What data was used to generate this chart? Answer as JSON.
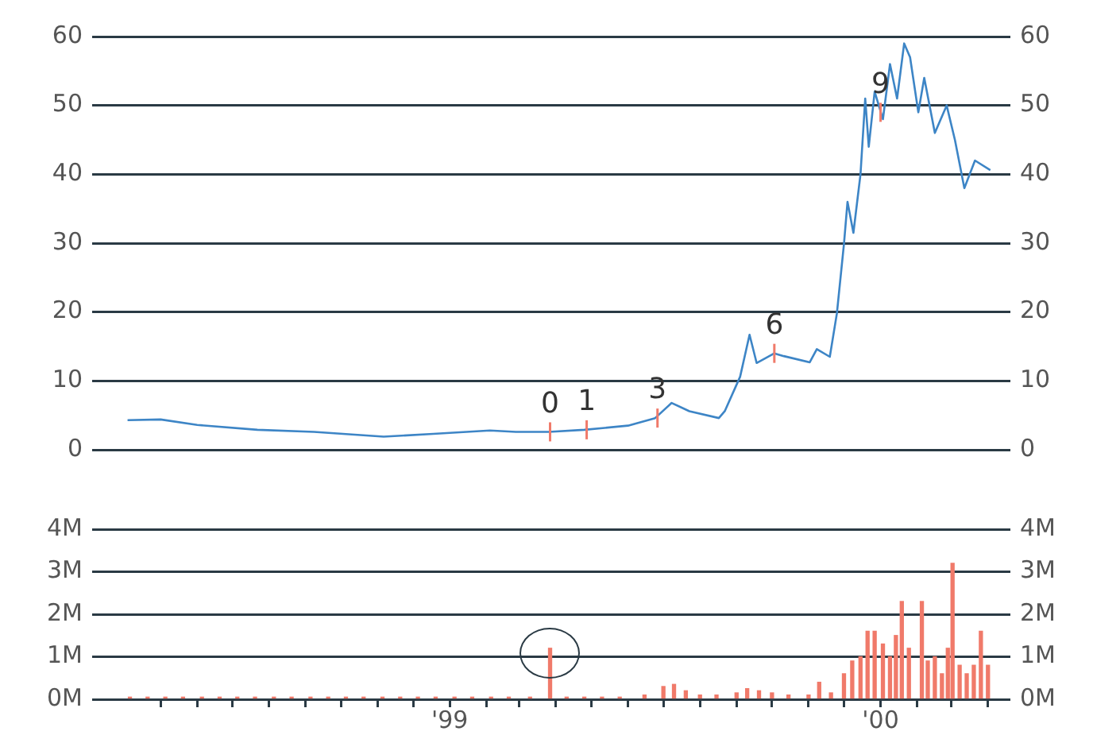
{
  "chart_data": [
    {
      "type": "line",
      "xlim": [
        "1998-03-04",
        "2000-04-20"
      ],
      "ylim": [
        0,
        60
      ],
      "yticks": [
        0,
        10,
        20,
        30,
        40,
        50,
        60
      ],
      "y2lim": [
        0,
        60
      ],
      "y2ticks": [
        0,
        10,
        20,
        30,
        40,
        50,
        60
      ],
      "grid": "y",
      "tick_labels": "y",
      "legend": false,
      "marker": "none",
      "line_style": "solid",
      "series": [
        {
          "color": "#3d85c6",
          "x": [
            "1998-04-03",
            "1998-05-01",
            "1998-06-01",
            "1998-07-22",
            "1998-09-08",
            "1998-11-06",
            "1998-12-18",
            "1999-02-04",
            "1999-02-26",
            "1999-03-26",
            "1999-04-25",
            "1999-06-01",
            "1999-06-24",
            "1999-07-08",
            "1999-07-23",
            "1999-08-17",
            "1999-08-22",
            "1999-09-04",
            "1999-09-12",
            "1999-09-18",
            "1999-10-03",
            "1999-10-11",
            "1999-11-02",
            "1999-11-08",
            "1999-11-19",
            "1999-11-25",
            "1999-12-01",
            "1999-12-04",
            "1999-12-09",
            "1999-12-15",
            "1999-12-19",
            "1999-12-22",
            "1999-12-27",
            "2000-01-03",
            "2000-01-09",
            "2000-01-15",
            "2000-01-21",
            "2000-01-26",
            "2000-02-02",
            "2000-02-07",
            "2000-02-16",
            "2000-02-26",
            "2000-03-04",
            "2000-03-12",
            "2000-03-21",
            "2000-04-03"
          ],
          "values": [
            4.3,
            4.4,
            3.6,
            2.9,
            2.6,
            1.9,
            2.3,
            2.8,
            2.6,
            2.6,
            2.9,
            3.5,
            4.6,
            6.8,
            5.6,
            4.6,
            5.6,
            10.6,
            16.7,
            12.6,
            14,
            13.6,
            12.7,
            14.6,
            13.5,
            19.8,
            29.9,
            36,
            31.5,
            40,
            51,
            44,
            52,
            48,
            56,
            51,
            59,
            57,
            49,
            54,
            46,
            50,
            45,
            38,
            42,
            40.6
          ]
        }
      ],
      "annotations": [
        {
          "text": "0",
          "x": "1999-03-27",
          "y": 2.6
        },
        {
          "text": "1",
          "x": "1999-04-27",
          "y": 2.9
        },
        {
          "text": "3",
          "x": "1999-06-26",
          "y": 4.6
        },
        {
          "text": "6",
          "x": "1999-10-03",
          "y": 14
        },
        {
          "text": "9",
          "x": "2000-01-01",
          "y": 49
        }
      ]
    },
    {
      "type": "bar",
      "xlim": [
        "1998-03-04",
        "2000-04-20"
      ],
      "xticks": [
        {
          "value": "1998-05",
          "label": null
        },
        {
          "value": "1998-06",
          "label": null
        },
        {
          "value": "1998-07",
          "label": null
        },
        {
          "value": "1998-08",
          "label": null
        },
        {
          "value": "1998-09",
          "label": null
        },
        {
          "value": "1998-10",
          "label": null
        },
        {
          "value": "1998-11",
          "label": null
        },
        {
          "value": "1998-12",
          "label": null
        },
        {
          "value": "1999-01",
          "label": "'99"
        },
        {
          "value": "1999-02",
          "label": null
        },
        {
          "value": "1999-03",
          "label": null
        },
        {
          "value": "1999-04",
          "label": null
        },
        {
          "value": "1999-05",
          "label": null
        },
        {
          "value": "1999-06",
          "label": null
        },
        {
          "value": "1999-07",
          "label": null
        },
        {
          "value": "1999-08",
          "label": null
        },
        {
          "value": "1999-09",
          "label": null
        },
        {
          "value": "1999-10",
          "label": null
        },
        {
          "value": "1999-11",
          "label": null
        },
        {
          "value": "1999-12",
          "label": null
        },
        {
          "value": "2000-01",
          "label": "'00"
        },
        {
          "value": "2000-02",
          "label": null
        },
        {
          "value": "2000-03",
          "label": null
        },
        {
          "value": "2000-04",
          "label": null
        }
      ],
      "ylim": [
        0,
        4
      ],
      "yticks": [
        {
          "value": 0,
          "label": "0M"
        },
        {
          "value": 1,
          "label": "1M"
        },
        {
          "value": 2,
          "label": "2M"
        },
        {
          "value": 3,
          "label": "3M"
        },
        {
          "value": 4,
          "label": "4M"
        }
      ],
      "y2lim": [
        0,
        4
      ],
      "y2ticks": [
        {
          "value": 0,
          "label": "0M"
        },
        {
          "value": 1,
          "label": "1M"
        },
        {
          "value": 2,
          "label": "2M"
        },
        {
          "value": 3,
          "label": "3M"
        },
        {
          "value": 4,
          "label": "4M"
        }
      ],
      "grid": "y",
      "legend": false,
      "series": [
        {
          "color": "#f07a6a",
          "x": [
            "1998-04-05",
            "1998-04-20",
            "1998-05-05",
            "1998-05-20",
            "1998-06-05",
            "1998-06-20",
            "1998-07-05",
            "1998-07-20",
            "1998-08-05",
            "1998-08-20",
            "1998-09-05",
            "1998-09-20",
            "1998-10-05",
            "1998-10-20",
            "1998-11-05",
            "1998-11-20",
            "1998-12-05",
            "1998-12-20",
            "1999-01-05",
            "1999-01-20",
            "1999-02-05",
            "1999-02-20",
            "1999-03-10",
            "1999-03-27",
            "1999-04-10",
            "1999-04-25",
            "1999-05-10",
            "1999-05-25",
            "1999-06-15",
            "1999-07-01",
            "1999-07-10",
            "1999-07-20",
            "1999-08-01",
            "1999-08-15",
            "1999-09-01",
            "1999-09-10",
            "1999-09-20",
            "1999-10-01",
            "1999-10-15",
            "1999-11-01",
            "1999-11-10",
            "1999-11-20",
            "1999-12-01",
            "1999-12-08",
            "1999-12-15",
            "1999-12-21",
            "1999-12-27",
            "2000-01-03",
            "2000-01-09",
            "2000-01-14",
            "2000-01-19",
            "2000-01-25",
            "2000-02-05",
            "2000-02-10",
            "2000-02-16",
            "2000-02-22",
            "2000-02-27",
            "2000-03-02",
            "2000-03-08",
            "2000-03-14",
            "2000-03-20",
            "2000-03-26",
            "2000-04-01"
          ],
          "values": [
            0.05,
            0.05,
            0.05,
            0.05,
            0.05,
            0.05,
            0.05,
            0.05,
            0.05,
            0.05,
            0.05,
            0.05,
            0.05,
            0.05,
            0.05,
            0.05,
            0.05,
            0.05,
            0.05,
            0.05,
            0.05,
            0.05,
            0.05,
            1.2,
            0.05,
            0.05,
            0.05,
            0.05,
            0.1,
            0.3,
            0.35,
            0.2,
            0.1,
            0.1,
            0.15,
            0.25,
            0.2,
            0.15,
            0.1,
            0.1,
            0.4,
            0.15,
            0.6,
            0.9,
            1,
            1.6,
            1.6,
            1.3,
            1,
            1.5,
            2.3,
            1.2,
            2.3,
            0.9,
            1,
            0.6,
            1.2,
            3.2,
            0.8,
            0.6,
            0.8,
            1.6,
            0.8
          ]
        }
      ]
    }
  ]
}
